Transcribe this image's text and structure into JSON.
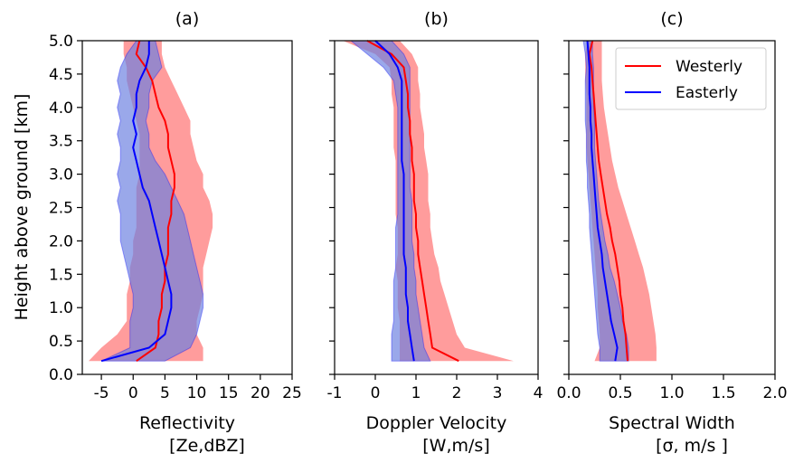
{
  "ylabel": "Height above ground [km]",
  "legend": {
    "entries": [
      {
        "name": "Westerly",
        "color": "#ff0000"
      },
      {
        "name": "Easterly",
        "color": "#0000ff"
      }
    ],
    "placement": "top-right of panel (c)"
  },
  "colors": {
    "westerly_line": "#ff0000",
    "westerly_fill": "#ff8080",
    "easterly_line": "#0000ff",
    "easterly_fill": "#6a7fe0"
  },
  "chart_data": [
    {
      "type": "line",
      "panel_label": "(a)",
      "xlabel_line1": "Reflectivity",
      "xlabel_line2": "[Ze,dBZ]",
      "xlim": [
        -8,
        25
      ],
      "xticks": [
        -5,
        0,
        5,
        10,
        15,
        20,
        25
      ],
      "xtick_labels": [
        "-5",
        "0",
        "5",
        "10",
        "15",
        "20",
        "25"
      ],
      "ylim": [
        0,
        5
      ],
      "yticks": [
        0.0,
        0.5,
        1.0,
        1.5,
        2.0,
        2.5,
        3.0,
        3.5,
        4.0,
        4.5,
        5.0
      ],
      "ytick_labels": [
        "0.0",
        "0.5",
        "1.0",
        "1.5",
        "2.0",
        "2.5",
        "3.0",
        "3.5",
        "4.0",
        "4.5",
        "5.0"
      ],
      "show_yticklabels": true,
      "heights": [
        0.2,
        0.4,
        0.6,
        0.8,
        1.0,
        1.2,
        1.4,
        1.6,
        1.8,
        2.0,
        2.2,
        2.4,
        2.6,
        2.8,
        3.0,
        3.2,
        3.4,
        3.6,
        3.8,
        4.0,
        4.2,
        4.4,
        4.6,
        4.8,
        5.0
      ],
      "series": [
        {
          "name": "Westerly",
          "mean": [
            0.5,
            3.5,
            4.0,
            4.0,
            4.5,
            4.5,
            5.0,
            5.0,
            5.5,
            5.5,
            5.5,
            6.0,
            6.0,
            6.5,
            6.5,
            6.0,
            5.5,
            5.5,
            5.0,
            4.0,
            3.5,
            3.0,
            2.0,
            0.5,
            1.0
          ],
          "lower": [
            -7.0,
            -5.0,
            -2.5,
            -1.0,
            -1.0,
            -1.0,
            -0.5,
            -0.5,
            0.0,
            0.0,
            0.5,
            0.5,
            0.5,
            0.5,
            1.0,
            1.0,
            1.0,
            1.0,
            0.5,
            0.0,
            -0.5,
            -1.0,
            -1.0,
            -1.5,
            -1.5
          ],
          "upper": [
            11.0,
            11.0,
            10.0,
            10.0,
            10.5,
            11.0,
            11.0,
            11.0,
            11.5,
            12.0,
            12.5,
            12.5,
            12.0,
            11.0,
            11.0,
            10.0,
            9.5,
            9.0,
            9.0,
            8.0,
            7.0,
            6.0,
            5.0,
            4.5,
            4.5
          ]
        },
        {
          "name": "Easterly",
          "mean": [
            -5.0,
            2.5,
            5.0,
            5.5,
            6.0,
            6.0,
            5.5,
            5.0,
            4.5,
            4.0,
            3.5,
            3.0,
            2.5,
            1.5,
            1.0,
            0.5,
            0.0,
            0.5,
            0.0,
            0.5,
            0.5,
            1.0,
            2.0,
            2.5,
            2.5
          ],
          "lower": [
            -5.0,
            -0.5,
            -0.5,
            -0.5,
            0.0,
            0.0,
            -0.5,
            -1.0,
            -1.5,
            -2.0,
            -2.0,
            -2.0,
            -2.5,
            -2.0,
            -2.5,
            -2.0,
            -2.0,
            -2.5,
            -2.0,
            -2.5,
            -2.0,
            -2.5,
            -2.0,
            -1.0,
            0.5
          ],
          "upper": [
            5.0,
            9.0,
            10.0,
            10.5,
            11.0,
            11.0,
            10.5,
            10.0,
            9.5,
            9.0,
            8.5,
            8.0,
            7.0,
            6.0,
            5.0,
            3.5,
            2.5,
            2.5,
            2.0,
            2.5,
            2.5,
            3.0,
            4.5,
            4.0,
            3.5
          ]
        }
      ]
    },
    {
      "type": "line",
      "panel_label": "(b)",
      "xlabel_line1": "Doppler Velocity",
      "xlabel_line2": "[W,m/s]",
      "xlim": [
        -1,
        4
      ],
      "xticks": [
        -1,
        0,
        1,
        2,
        3,
        4
      ],
      "xtick_labels": [
        "-1",
        "0",
        "1",
        "2",
        "3",
        "4"
      ],
      "ylim": [
        0,
        5
      ],
      "yticks": [
        0.0,
        0.5,
        1.0,
        1.5,
        2.0,
        2.5,
        3.0,
        3.5,
        4.0,
        4.5,
        5.0
      ],
      "show_yticklabels": false,
      "heights": [
        0.2,
        0.4,
        0.6,
        0.8,
        1.0,
        1.2,
        1.4,
        1.6,
        1.8,
        2.0,
        2.2,
        2.4,
        2.6,
        2.8,
        3.0,
        3.2,
        3.4,
        3.6,
        3.8,
        4.0,
        4.2,
        4.4,
        4.6,
        4.8,
        5.0
      ],
      "series": [
        {
          "name": "Westerly",
          "mean": [
            2.05,
            1.4,
            1.35,
            1.3,
            1.25,
            1.2,
            1.15,
            1.1,
            1.05,
            1.05,
            1.0,
            1.0,
            0.95,
            0.95,
            0.95,
            0.9,
            0.9,
            0.85,
            0.85,
            0.8,
            0.8,
            0.75,
            0.7,
            0.4,
            -0.2
          ],
          "lower": [
            0.6,
            0.6,
            0.6,
            0.6,
            0.55,
            0.55,
            0.55,
            0.5,
            0.55,
            0.55,
            0.55,
            0.5,
            0.5,
            0.5,
            0.5,
            0.5,
            0.45,
            0.45,
            0.45,
            0.45,
            0.4,
            0.4,
            0.35,
            0.0,
            -0.8
          ],
          "upper": [
            3.4,
            2.2,
            2.0,
            1.9,
            1.8,
            1.7,
            1.6,
            1.55,
            1.45,
            1.4,
            1.35,
            1.35,
            1.3,
            1.3,
            1.3,
            1.25,
            1.2,
            1.2,
            1.15,
            1.1,
            1.1,
            1.05,
            1.05,
            0.9,
            0.6
          ]
        },
        {
          "name": "Easterly",
          "mean": [
            0.95,
            0.9,
            0.85,
            0.8,
            0.8,
            0.75,
            0.75,
            0.75,
            0.7,
            0.7,
            0.7,
            0.7,
            0.7,
            0.7,
            0.7,
            0.65,
            0.65,
            0.65,
            0.65,
            0.65,
            0.65,
            0.65,
            0.55,
            0.35,
            0.0
          ],
          "lower": [
            0.4,
            0.4,
            0.4,
            0.45,
            0.45,
            0.45,
            0.45,
            0.5,
            0.5,
            0.5,
            0.5,
            0.55,
            0.55,
            0.55,
            0.55,
            0.55,
            0.55,
            0.55,
            0.55,
            0.55,
            0.5,
            0.45,
            0.2,
            -0.2,
            -0.6
          ],
          "upper": [
            1.35,
            1.2,
            1.15,
            1.1,
            1.05,
            1.0,
            1.0,
            0.95,
            0.95,
            0.9,
            0.9,
            0.9,
            0.9,
            0.85,
            0.85,
            0.85,
            0.85,
            0.85,
            0.85,
            0.85,
            0.85,
            0.85,
            0.85,
            0.7,
            0.4
          ]
        }
      ]
    },
    {
      "type": "line",
      "panel_label": "(c)",
      "xlabel_line1": "Spectral Width",
      "xlabel_line2": "[σ, m/s ]",
      "xlim": [
        0.0,
        2.0
      ],
      "xticks": [
        0.0,
        0.5,
        1.0,
        1.5,
        2.0
      ],
      "xtick_labels": [
        "0.0",
        "0.5",
        "1.0",
        "1.5",
        "2.0"
      ],
      "ylim": [
        0,
        5
      ],
      "yticks": [
        0.0,
        0.5,
        1.0,
        1.5,
        2.0,
        2.5,
        3.0,
        3.5,
        4.0,
        4.5,
        5.0
      ],
      "show_yticklabels": false,
      "heights": [
        0.2,
        0.4,
        0.6,
        0.8,
        1.0,
        1.2,
        1.4,
        1.6,
        1.8,
        2.0,
        2.2,
        2.4,
        2.6,
        2.8,
        3.0,
        3.2,
        3.4,
        3.6,
        3.8,
        4.0,
        4.2,
        4.4,
        4.6,
        4.8,
        5.0
      ],
      "series": [
        {
          "name": "Westerly",
          "mean": [
            0.57,
            0.56,
            0.55,
            0.53,
            0.52,
            0.5,
            0.49,
            0.47,
            0.45,
            0.42,
            0.4,
            0.37,
            0.35,
            0.33,
            0.31,
            0.29,
            0.28,
            0.27,
            0.26,
            0.25,
            0.24,
            0.23,
            0.22,
            0.2,
            0.23
          ],
          "lower": [
            0.25,
            0.3,
            0.3,
            0.29,
            0.28,
            0.28,
            0.27,
            0.26,
            0.25,
            0.24,
            0.23,
            0.22,
            0.21,
            0.2,
            0.19,
            0.18,
            0.17,
            0.17,
            0.17,
            0.17,
            0.17,
            0.16,
            0.16,
            0.16,
            0.18
          ],
          "upper": [
            0.85,
            0.85,
            0.84,
            0.82,
            0.8,
            0.78,
            0.75,
            0.72,
            0.68,
            0.64,
            0.6,
            0.56,
            0.52,
            0.48,
            0.45,
            0.42,
            0.4,
            0.38,
            0.36,
            0.34,
            0.33,
            0.32,
            0.32,
            0.32,
            0.32
          ]
        },
        {
          "name": "Easterly",
          "mean": [
            0.45,
            0.47,
            0.44,
            0.41,
            0.39,
            0.37,
            0.35,
            0.33,
            0.32,
            0.3,
            0.28,
            0.27,
            0.26,
            0.25,
            0.24,
            0.23,
            0.22,
            0.22,
            0.21,
            0.21,
            0.2,
            0.2,
            0.2,
            0.19,
            0.18
          ],
          "lower": [
            0.3,
            0.3,
            0.28,
            0.27,
            0.26,
            0.25,
            0.24,
            0.23,
            0.22,
            0.21,
            0.2,
            0.2,
            0.19,
            0.18,
            0.18,
            0.17,
            0.17,
            0.17,
            0.16,
            0.16,
            0.16,
            0.16,
            0.17,
            0.16,
            0.14
          ],
          "upper": [
            0.58,
            0.58,
            0.56,
            0.52,
            0.5,
            0.47,
            0.44,
            0.4,
            0.38,
            0.35,
            0.33,
            0.31,
            0.29,
            0.28,
            0.27,
            0.26,
            0.25,
            0.25,
            0.25,
            0.24,
            0.24,
            0.24,
            0.24,
            0.23,
            0.23
          ]
        }
      ]
    }
  ]
}
